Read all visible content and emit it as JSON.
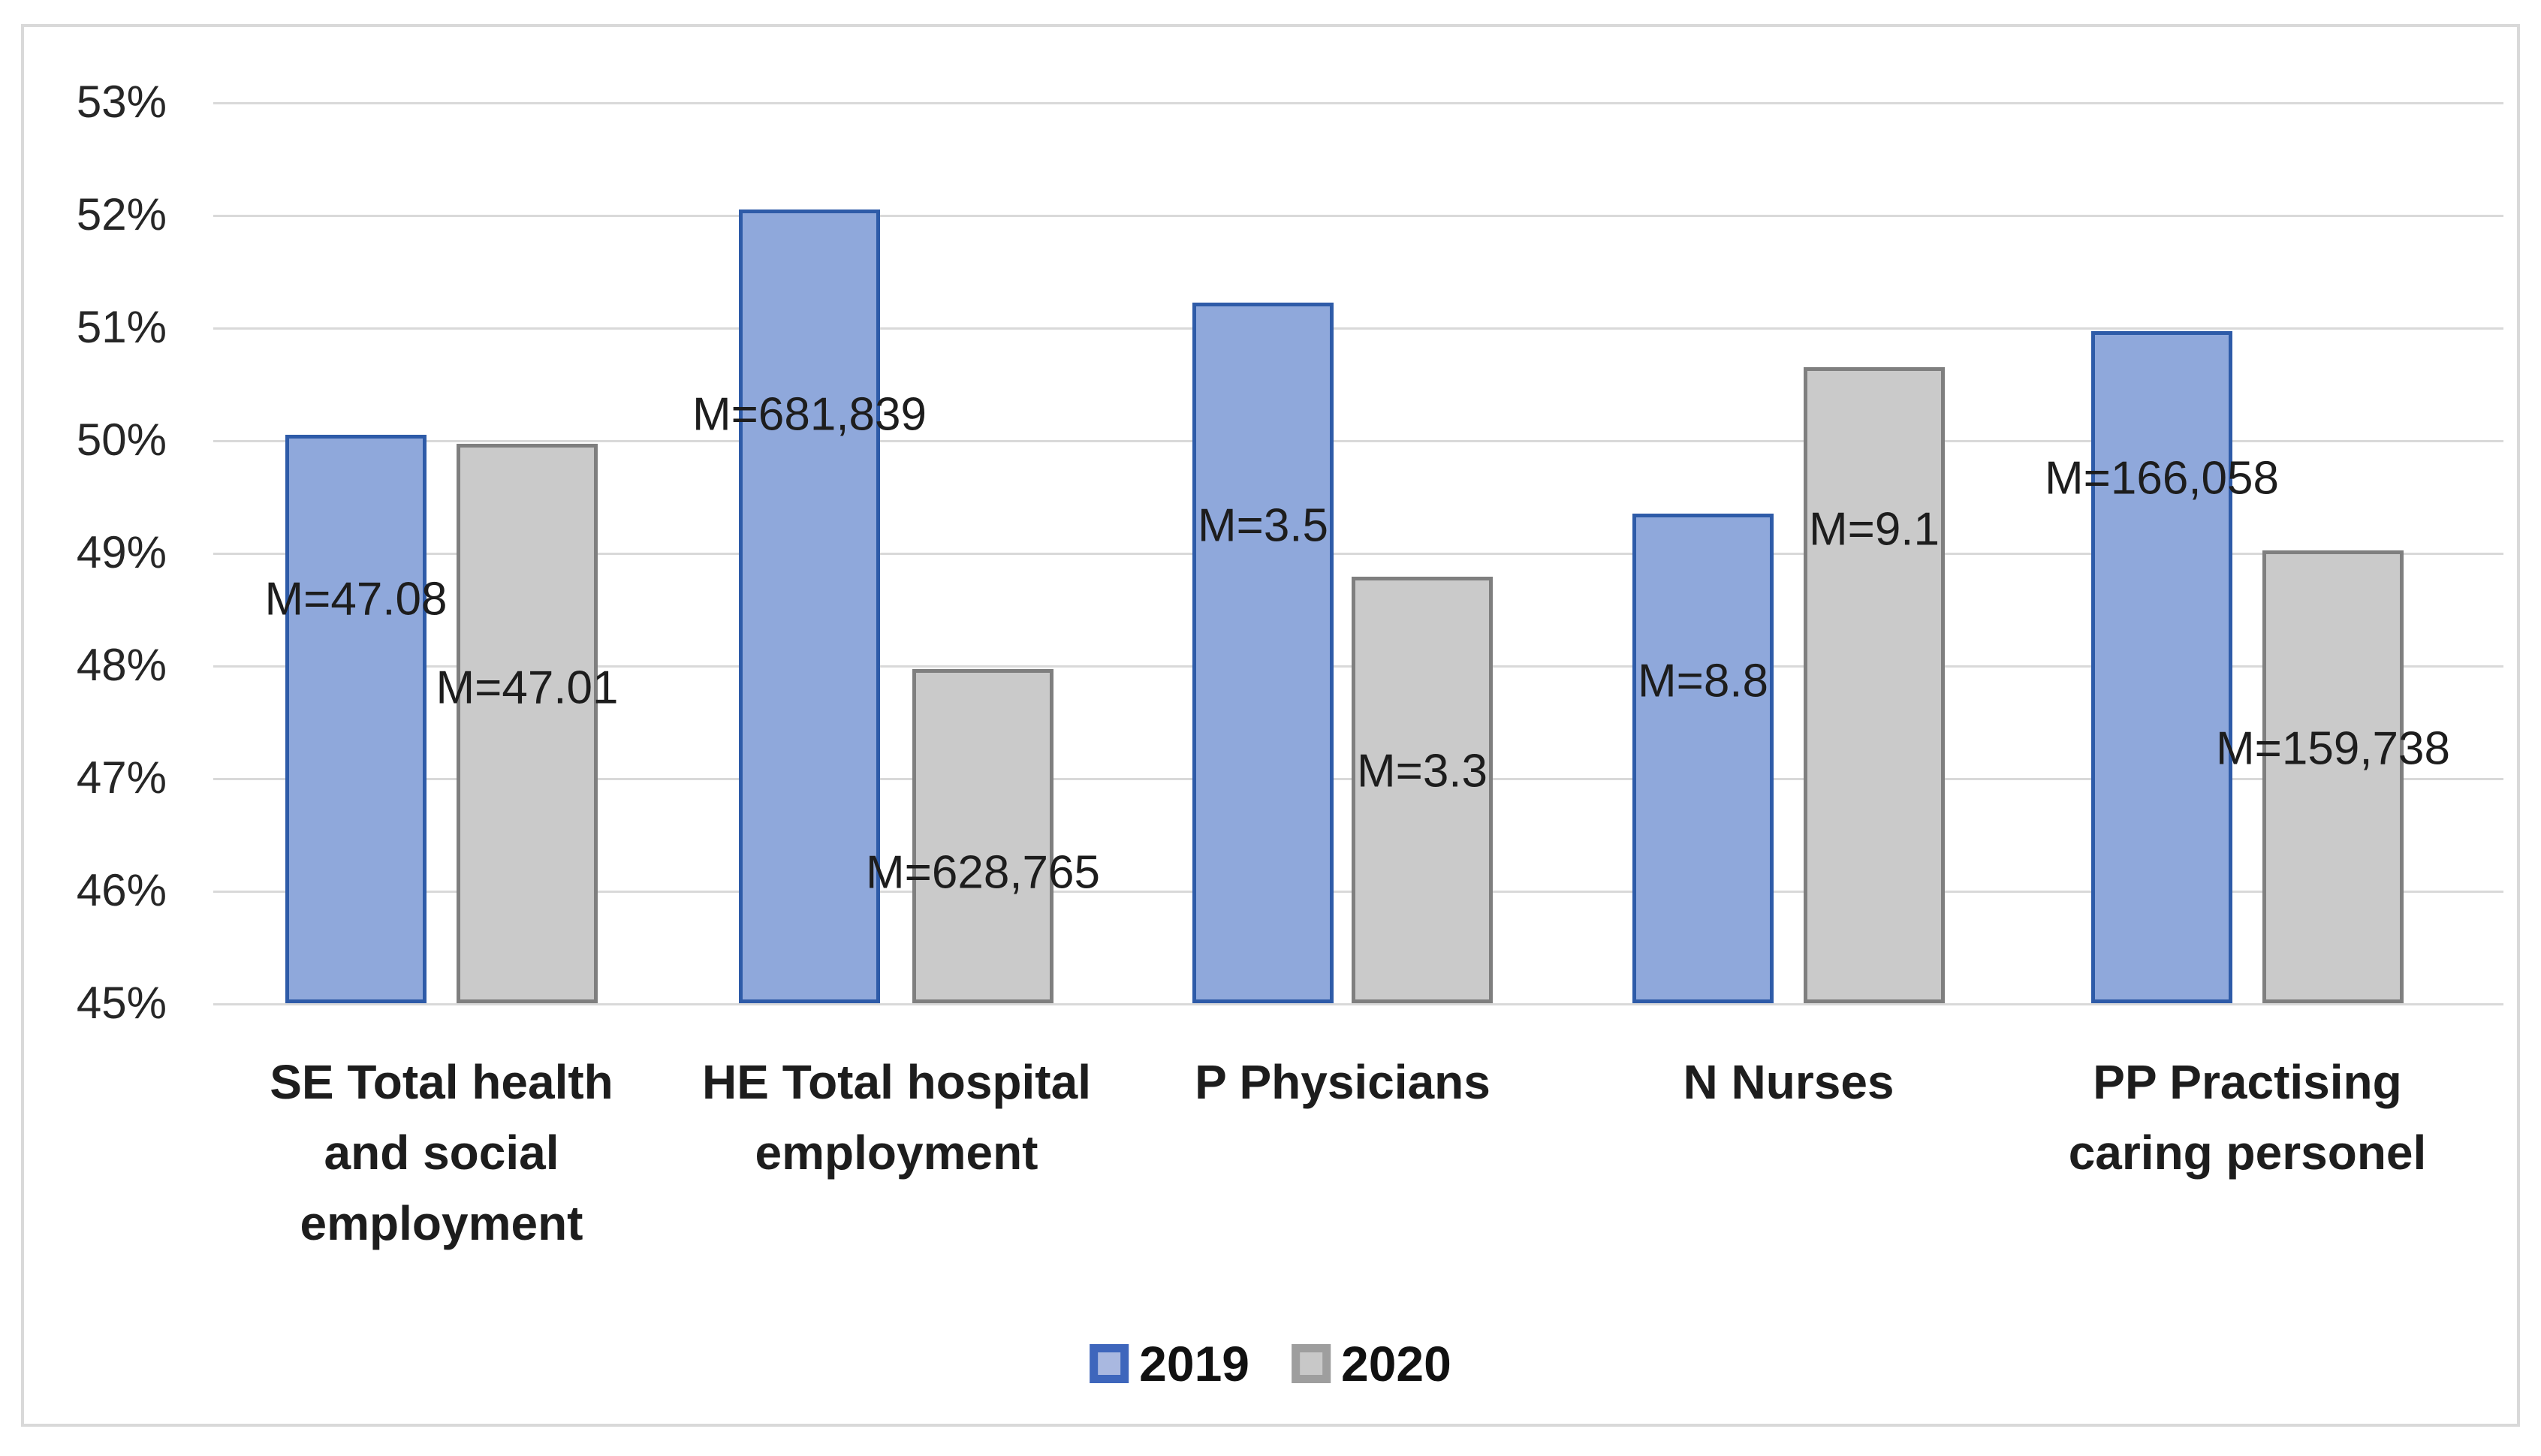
{
  "chart_data": {
    "type": "bar",
    "title": "",
    "categories": [
      "SE Total health\nand social\nemployment",
      "HE Total hospital\nemployment",
      "P Physicians",
      "N Nurses",
      "PP Practising\ncaring personel"
    ],
    "series": [
      {
        "name": "2019",
        "values": [
          50.05,
          52.05,
          51.22,
          49.35,
          50.97
        ],
        "data_labels": [
          "M=47.08",
          "M=681,839",
          "M=3.5",
          "M=8.8",
          "M=166,058"
        ],
        "label_at": [
          48.59,
          50.23,
          49.24,
          47.86,
          49.66
        ],
        "fill": "#8FA8DB",
        "border": "#2E5BA8",
        "legend_fill": "#A9B8E0",
        "legend_border": "#3E66BC"
      },
      {
        "name": "2020",
        "values": [
          49.97,
          47.97,
          48.79,
          50.65,
          49.02
        ],
        "data_labels": [
          "M=47.01",
          "M=628,765",
          "M=3.3",
          "M=9.1",
          "M=159,738"
        ],
        "label_at": [
          47.8,
          46.16,
          47.06,
          49.21,
          47.26
        ],
        "fill": "#CACACA",
        "border": "#7F7F7F",
        "legend_fill": "#C8C8C8",
        "legend_border": "#9E9E9E"
      }
    ],
    "y_axis": {
      "min": 45,
      "max": 53,
      "step": 1,
      "format": "percent",
      "tick_labels": [
        "45%",
        "46%",
        "47%",
        "48%",
        "49%",
        "50%",
        "51%",
        "52%",
        "53%"
      ]
    },
    "grid": true,
    "legend_position": "bottom-center",
    "colors": {
      "gridline": "#D9D9D9",
      "frame_border": "#D9D9D9",
      "text": "#262626",
      "background": "#FFFFFF"
    }
  }
}
